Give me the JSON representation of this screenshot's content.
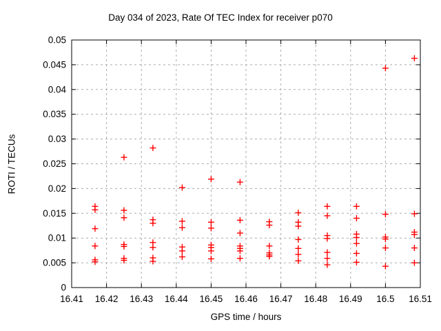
{
  "window": {
    "background": "#ffffff"
  },
  "chart_data": {
    "type": "scatter",
    "title": "Day 034 of 2023, Rate Of TEC Index for receiver p070",
    "xlabel": "GPS time / hours",
    "ylabel": "ROTI / TECUs",
    "xlim": [
      16.41,
      16.51
    ],
    "ylim": [
      0,
      0.05
    ],
    "xticks": {
      "values": [
        16.41,
        16.42,
        16.43,
        16.44,
        16.45,
        16.46,
        16.47,
        16.48,
        16.49,
        16.5,
        16.51
      ],
      "labels": [
        "16.41",
        "16.42",
        "16.43",
        "16.44",
        "16.45",
        "16.46",
        "16.47",
        "16.48",
        "16.49",
        "16.5",
        "16.51"
      ]
    },
    "yticks": {
      "values": [
        0,
        0.005,
        0.01,
        0.015,
        0.02,
        0.025,
        0.03,
        0.035,
        0.04,
        0.045,
        0.05
      ],
      "labels": [
        "0",
        "0.005",
        "0.01",
        "0.015",
        "0.02",
        "0.025",
        "0.03",
        "0.035",
        "0.04",
        "0.045",
        "0.05"
      ]
    },
    "grid": true,
    "legend_position": "none",
    "marker": {
      "shape": "plus",
      "color": "#ff0000",
      "size": 9,
      "stroke_width": 1.4
    },
    "colors": {
      "border": "#000000",
      "grid": "#aaaaaa",
      "text": "#000000",
      "background": "#ffffff"
    },
    "series": [
      {
        "name": "ROTI",
        "points": [
          [
            16.4167,
            0.0164
          ],
          [
            16.4167,
            0.0157
          ],
          [
            16.4167,
            0.0119
          ],
          [
            16.4167,
            0.0084
          ],
          [
            16.4167,
            0.0056
          ],
          [
            16.4167,
            0.0052
          ],
          [
            16.425,
            0.0263
          ],
          [
            16.425,
            0.0156
          ],
          [
            16.425,
            0.0141
          ],
          [
            16.425,
            0.0087
          ],
          [
            16.425,
            0.0083
          ],
          [
            16.425,
            0.0059
          ],
          [
            16.425,
            0.0055
          ],
          [
            16.4333,
            0.0282
          ],
          [
            16.4333,
            0.0137
          ],
          [
            16.4333,
            0.013
          ],
          [
            16.4333,
            0.0091
          ],
          [
            16.4333,
            0.0081
          ],
          [
            16.4333,
            0.006
          ],
          [
            16.4333,
            0.0053
          ],
          [
            16.4417,
            0.0202
          ],
          [
            16.4417,
            0.0134
          ],
          [
            16.4417,
            0.0121
          ],
          [
            16.4417,
            0.0082
          ],
          [
            16.4417,
            0.0074
          ],
          [
            16.4417,
            0.0062
          ],
          [
            16.45,
            0.0219
          ],
          [
            16.45,
            0.0132
          ],
          [
            16.45,
            0.012
          ],
          [
            16.45,
            0.0086
          ],
          [
            16.45,
            0.0081
          ],
          [
            16.45,
            0.0074
          ],
          [
            16.45,
            0.0058
          ],
          [
            16.4583,
            0.0213
          ],
          [
            16.4583,
            0.0136
          ],
          [
            16.4583,
            0.011
          ],
          [
            16.4583,
            0.0084
          ],
          [
            16.4583,
            0.0079
          ],
          [
            16.4583,
            0.0074
          ],
          [
            16.4583,
            0.0059
          ],
          [
            16.4667,
            0.0133
          ],
          [
            16.4667,
            0.0126
          ],
          [
            16.4667,
            0.0084
          ],
          [
            16.4667,
            0.007
          ],
          [
            16.4667,
            0.0066
          ],
          [
            16.4667,
            0.0063
          ],
          [
            16.475,
            0.0151
          ],
          [
            16.475,
            0.0132
          ],
          [
            16.475,
            0.0124
          ],
          [
            16.475,
            0.0097
          ],
          [
            16.475,
            0.0079
          ],
          [
            16.475,
            0.0067
          ],
          [
            16.475,
            0.0054
          ],
          [
            16.4833,
            0.0164
          ],
          [
            16.4833,
            0.0145
          ],
          [
            16.4833,
            0.0105
          ],
          [
            16.4833,
            0.0099
          ],
          [
            16.4833,
            0.0071
          ],
          [
            16.4833,
            0.0059
          ],
          [
            16.4833,
            0.0046
          ],
          [
            16.4917,
            0.0164
          ],
          [
            16.4917,
            0.014
          ],
          [
            16.4917,
            0.0108
          ],
          [
            16.4917,
            0.0101
          ],
          [
            16.4917,
            0.0089
          ],
          [
            16.4917,
            0.0069
          ],
          [
            16.4917,
            0.0051
          ],
          [
            16.5,
            0.0443
          ],
          [
            16.5,
            0.0148
          ],
          [
            16.5,
            0.0102
          ],
          [
            16.5,
            0.0098
          ],
          [
            16.5,
            0.008
          ],
          [
            16.5,
            0.0043
          ],
          [
            16.5083,
            0.0463
          ],
          [
            16.5083,
            0.0149
          ],
          [
            16.5083,
            0.0112
          ],
          [
            16.5083,
            0.0107
          ],
          [
            16.5083,
            0.008
          ],
          [
            16.5083,
            0.005
          ]
        ]
      }
    ]
  }
}
